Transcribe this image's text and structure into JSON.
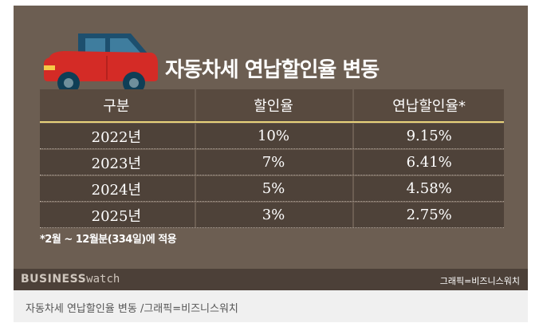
{
  "title": "자동차세 연납할인율 변동",
  "chart_data": {
    "type": "table",
    "columns": [
      "구분",
      "할인율",
      "연납할인율*"
    ],
    "rows": [
      [
        "2022년",
        "10%",
        "9.15%"
      ],
      [
        "2023년",
        "7%",
        "6.41%"
      ],
      [
        "2024년",
        "5%",
        "4.58%"
      ],
      [
        "2025년",
        "3%",
        "2.75%"
      ]
    ]
  },
  "footnote": "*2월 ~ 12월분(334일)에 적용",
  "brand": {
    "part1": "BUSINESS",
    "part2": "watch"
  },
  "credit": "그래픽=비즈니스워치",
  "caption": "자동차세 연납할인율 변동 /그래픽=비즈니스워치",
  "colors": {
    "background": "#6c5e52",
    "header": "#584a3f",
    "row": "#4e4239",
    "car_body": "#d42b26",
    "car_roof": "#1d4f6e"
  }
}
